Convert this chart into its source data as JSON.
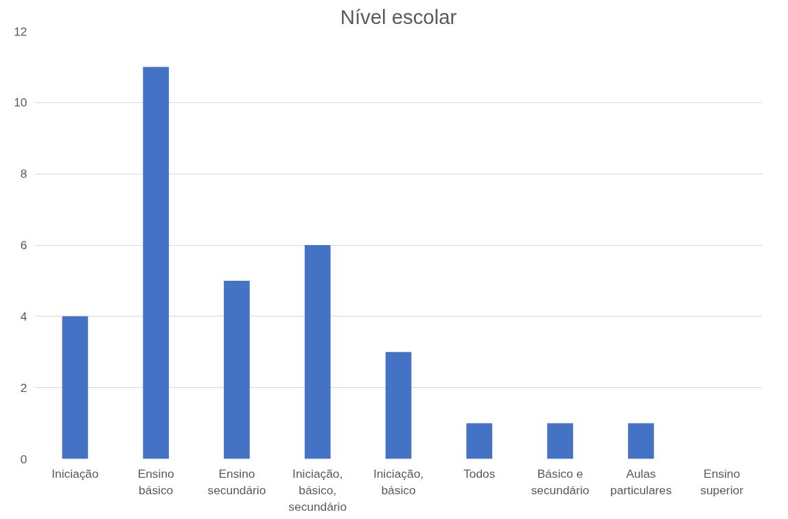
{
  "chart_data": {
    "type": "bar",
    "title": "Nível escolar",
    "categories": [
      "Iniciação",
      "Ensino básico",
      "Ensino secundário",
      "Iniciação, básico, secundário",
      "Iniciação, básico",
      "Todos",
      "Básico e secundário",
      "Aulas particulares",
      "Ensino superior"
    ],
    "values": [
      4,
      11,
      5,
      6,
      3,
      1,
      1,
      1,
      0
    ],
    "color": "#4472c4",
    "ylim": [
      0,
      12
    ],
    "yticks": [
      0,
      2,
      4,
      6,
      8,
      10,
      12
    ],
    "grid": "y"
  }
}
